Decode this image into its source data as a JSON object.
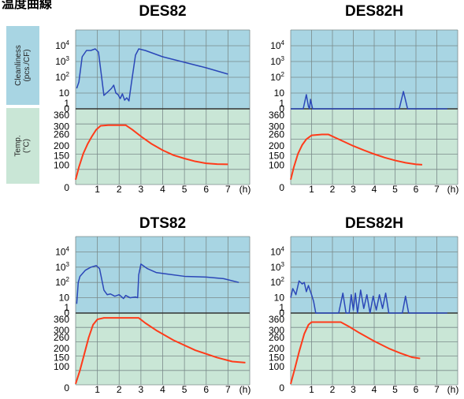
{
  "page": {
    "cut_title": "温度曲線"
  },
  "side_labels": {
    "cleanliness": "Cleanliness\n(pcs./CF)",
    "temp": "Temp.\n(°C)"
  },
  "colors": {
    "clean_bg": "#a8d5e3",
    "temp_bg": "#c9e6d6",
    "grid": "#7a8a8a",
    "clean_line": "#2b47b8",
    "temp_line": "#ff3b1a"
  },
  "chart_data": [
    {
      "type": "line",
      "title": "DES82",
      "x_ticks": [
        "1",
        "2",
        "3",
        "4",
        "5",
        "6",
        "7"
      ],
      "x_unit": "(h)",
      "clean_ticks": [
        "10^4",
        "10^3",
        "10^2",
        "10",
        "1",
        "0"
      ],
      "temp_ticks": [
        "360",
        "300",
        "260",
        "200",
        "150",
        "100",
        "0"
      ],
      "series": [
        {
          "values_clean": [
            [
              0.05,
              1.3
            ],
            [
              0.15,
              1.7
            ],
            [
              0.3,
              3.3
            ],
            [
              0.5,
              3.7
            ],
            [
              0.7,
              3.7
            ],
            [
              0.9,
              3.8
            ],
            [
              1.05,
              3.6
            ],
            [
              1.3,
              0.85
            ],
            [
              1.5,
              1.1
            ],
            [
              1.65,
              1.3
            ],
            [
              1.75,
              1.5
            ],
            [
              1.85,
              1.0
            ],
            [
              1.95,
              0.9
            ],
            [
              2.05,
              0.65
            ],
            [
              2.15,
              0.95
            ],
            [
              2.25,
              0.55
            ],
            [
              2.35,
              0.7
            ],
            [
              2.45,
              0.5
            ],
            [
              2.55,
              1.5
            ],
            [
              2.75,
              3.4
            ],
            [
              2.9,
              3.8
            ],
            [
              3.2,
              3.7
            ],
            [
              4,
              3.3
            ],
            [
              5,
              2.95
            ],
            [
              6,
              2.6
            ],
            [
              7,
              2.2
            ]
          ],
          "values_temp": [
            [
              0,
              25
            ],
            [
              0.15,
              90
            ],
            [
              0.35,
              160
            ],
            [
              0.55,
              210
            ],
            [
              0.75,
              250
            ],
            [
              0.95,
              285
            ],
            [
              1.15,
              305
            ],
            [
              1.5,
              308
            ],
            [
              2.3,
              308
            ],
            [
              2.6,
              285
            ],
            [
              3,
              250
            ],
            [
              3.5,
              210
            ],
            [
              4,
              178
            ],
            [
              4.5,
              152
            ],
            [
              5,
              135
            ],
            [
              5.5,
              120
            ],
            [
              6,
              110
            ],
            [
              6.5,
              106
            ],
            [
              7,
              105
            ]
          ]
        }
      ]
    },
    {
      "type": "line",
      "title": "DES82H",
      "x_ticks": [
        "1",
        "2",
        "3",
        "4",
        "5",
        "6",
        "7"
      ],
      "x_unit": "(h)",
      "clean_ticks": [
        "10^4",
        "10^3",
        "10^2",
        "10",
        "1",
        "0"
      ],
      "temp_ticks": [
        "360",
        "300",
        "260",
        "200",
        "150",
        "100",
        "0"
      ],
      "series": [
        {
          "values_clean": [
            [
              0,
              0
            ],
            [
              0.6,
              0
            ],
            [
              0.75,
              0.9
            ],
            [
              0.85,
              0.15
            ],
            [
              0.9,
              0
            ],
            [
              0.95,
              0.6
            ],
            [
              1.05,
              0
            ],
            [
              5.2,
              0
            ],
            [
              5.4,
              1.1
            ],
            [
              5.6,
              0
            ],
            [
              7.5,
              0
            ]
          ],
          "values_temp": [
            [
              0,
              25
            ],
            [
              0.15,
              90
            ],
            [
              0.35,
              160
            ],
            [
              0.55,
              205
            ],
            [
              0.75,
              235
            ],
            [
              1,
              255
            ],
            [
              1.5,
              260
            ],
            [
              1.8,
              260
            ],
            [
              2.1,
              245
            ],
            [
              2.5,
              225
            ],
            [
              3,
              200
            ],
            [
              3.5,
              178
            ],
            [
              4,
              158
            ],
            [
              4.5,
              140
            ],
            [
              5,
              125
            ],
            [
              5.5,
              113
            ],
            [
              6,
              105
            ],
            [
              6.3,
              103
            ]
          ]
        }
      ]
    },
    {
      "type": "line",
      "title": "DTS82",
      "x_ticks": [
        "1",
        "2",
        "3",
        "4",
        "5",
        "6",
        "7"
      ],
      "x_unit": "(h)",
      "clean_ticks": [
        "10^4",
        "10^3",
        "10^2",
        "10",
        "1",
        "0"
      ],
      "temp_ticks": [
        "360",
        "300",
        "260",
        "200",
        "150",
        "100",
        "0"
      ],
      "series": [
        {
          "values_clean": [
            [
              0.05,
              0.6
            ],
            [
              0.12,
              2.0
            ],
            [
              0.2,
              2.4
            ],
            [
              0.45,
              2.8
            ],
            [
              0.7,
              3.0
            ],
            [
              0.95,
              3.1
            ],
            [
              1.1,
              2.9
            ],
            [
              1.3,
              1.5
            ],
            [
              1.45,
              1.2
            ],
            [
              1.6,
              1.25
            ],
            [
              1.8,
              1.1
            ],
            [
              2.0,
              1.2
            ],
            [
              2.2,
              0.95
            ],
            [
              2.3,
              1.15
            ],
            [
              2.5,
              1.0
            ],
            [
              2.75,
              1.05
            ],
            [
              2.85,
              1.0
            ],
            [
              2.9,
              2.5
            ],
            [
              3.0,
              3.2
            ],
            [
              3.3,
              2.9
            ],
            [
              3.7,
              2.65
            ],
            [
              4.2,
              2.55
            ],
            [
              5,
              2.4
            ],
            [
              6,
              2.35
            ],
            [
              6.8,
              2.25
            ],
            [
              7.5,
              2.0
            ]
          ],
          "values_temp": [
            [
              0,
              5
            ],
            [
              0.2,
              80
            ],
            [
              0.4,
              170
            ],
            [
              0.6,
              260
            ],
            [
              0.8,
              330
            ],
            [
              1,
              360
            ],
            [
              1.3,
              368
            ],
            [
              2,
              368
            ],
            [
              2.9,
              368
            ],
            [
              3.2,
              340
            ],
            [
              3.7,
              300
            ],
            [
              4.5,
              245
            ],
            [
              5.5,
              190
            ],
            [
              6.5,
              150
            ],
            [
              7.2,
              128
            ],
            [
              7.8,
              122
            ]
          ]
        }
      ]
    },
    {
      "type": "line",
      "title": "DES82H",
      "x_ticks": [
        "1",
        "2",
        "3",
        "4",
        "5",
        "6",
        "7"
      ],
      "x_unit": "(h)",
      "clean_ticks": [
        "10^4",
        "10^3",
        "10^2",
        "10",
        "1",
        "0"
      ],
      "temp_ticks": [
        "360",
        "300",
        "260",
        "200",
        "150",
        "100",
        "0"
      ],
      "series": [
        {
          "values_clean": [
            [
              0,
              1
            ],
            [
              0.1,
              1.6
            ],
            [
              0.25,
              1.2
            ],
            [
              0.4,
              2.1
            ],
            [
              0.55,
              1.9
            ],
            [
              0.65,
              2.0
            ],
            [
              0.75,
              1.4
            ],
            [
              0.85,
              1.8
            ],
            [
              1,
              1.2
            ],
            [
              1.1,
              0.75
            ],
            [
              1.2,
              0
            ],
            [
              2.3,
              0
            ],
            [
              2.5,
              1.3
            ],
            [
              2.65,
              0
            ],
            [
              2.8,
              0
            ],
            [
              2.9,
              1.2
            ],
            [
              3.0,
              0.2
            ],
            [
              3.1,
              1.3
            ],
            [
              3.2,
              0
            ],
            [
              3.35,
              1.5
            ],
            [
              3.5,
              0.3
            ],
            [
              3.65,
              1.2
            ],
            [
              3.8,
              0
            ],
            [
              3.95,
              1.1
            ],
            [
              4.1,
              0.2
            ],
            [
              4.25,
              1.2
            ],
            [
              4.4,
              0.3
            ],
            [
              4.55,
              1.3
            ],
            [
              4.7,
              0
            ],
            [
              5.35,
              0
            ],
            [
              5.5,
              1.1
            ],
            [
              5.65,
              0
            ],
            [
              7.5,
              0
            ]
          ],
          "values_temp": [
            [
              0,
              5
            ],
            [
              0.2,
              90
            ],
            [
              0.4,
              180
            ],
            [
              0.65,
              280
            ],
            [
              0.85,
              330
            ],
            [
              1,
              345
            ],
            [
              1.5,
              345
            ],
            [
              2.4,
              345
            ],
            [
              2.8,
              320
            ],
            [
              3.3,
              285
            ],
            [
              4,
              240
            ],
            [
              4.7,
              200
            ],
            [
              5.3,
              172
            ],
            [
              5.8,
              152
            ],
            [
              6.2,
              145
            ]
          ]
        }
      ]
    }
  ]
}
